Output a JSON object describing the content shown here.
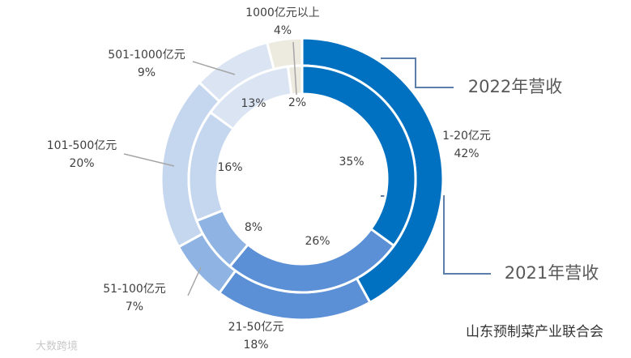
{
  "chart_data": {
    "type": "pie",
    "categories": [
      "1-20亿元",
      "21-50亿元",
      "51-100亿元",
      "101-500亿元",
      "501-1000亿元",
      "1000亿元以上"
    ],
    "colors": [
      "#0070c0",
      "#5b8fd6",
      "#8fb4e3",
      "#c5d6ef",
      "#dae4f3",
      "#edeae0"
    ],
    "series": [
      {
        "name": "2022年营收",
        "values": [
          42,
          18,
          7,
          20,
          9,
          4
        ],
        "value_labels": [
          "42%",
          "18%",
          "7%",
          "20%",
          "9%",
          "4%"
        ]
      },
      {
        "name": "2021年营收",
        "values": [
          35,
          26,
          8,
          16,
          13,
          2
        ],
        "value_labels": [
          "35%",
          "26%",
          "8%",
          "16%",
          "13%",
          "2%"
        ]
      }
    ],
    "watermarks": [
      "山东预制菜产业联合会",
      "大数跨境"
    ]
  }
}
